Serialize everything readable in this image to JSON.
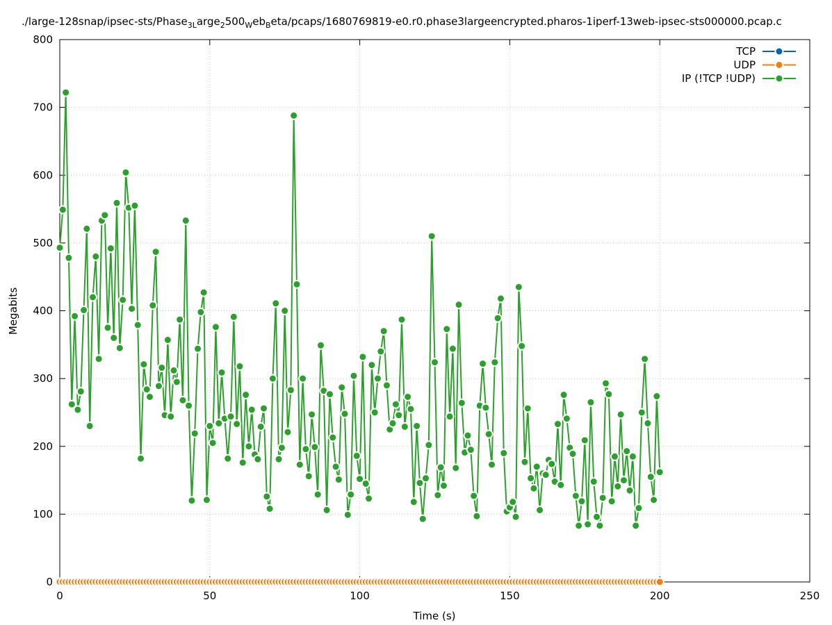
{
  "chart_data": {
    "type": "line",
    "title_parts": [
      "./large-128snap/ipsec-sts/Phase",
      "3L",
      "arge",
      "2",
      "500",
      "W",
      "eb",
      "B",
      "eta/pcaps/1680769819-e0.r0.phase3largeencrypted.pharos-1iperf-13web-ipsec-sts000000.pcap.c"
    ],
    "xlabel": "Time (s)",
    "ylabel": "Megabits",
    "xlim": [
      0,
      250
    ],
    "xticks": [
      0,
      50,
      100,
      150,
      200,
      250
    ],
    "ylim": [
      0,
      800
    ],
    "yticks": [
      0,
      100,
      200,
      300,
      400,
      500,
      600,
      700,
      800
    ],
    "grid": true,
    "legend": "top-right",
    "x": [
      0,
      1,
      2,
      3,
      4,
      5,
      6,
      7,
      8,
      9,
      10,
      11,
      12,
      13,
      14,
      15,
      16,
      17,
      18,
      19,
      20,
      21,
      22,
      23,
      24,
      25,
      26,
      27,
      28,
      29,
      30,
      31,
      32,
      33,
      34,
      35,
      36,
      37,
      38,
      39,
      40,
      41,
      42,
      43,
      44,
      45,
      46,
      47,
      48,
      49,
      50,
      51,
      52,
      53,
      54,
      55,
      56,
      57,
      58,
      59,
      60,
      61,
      62,
      63,
      64,
      65,
      66,
      67,
      68,
      69,
      70,
      71,
      72,
      73,
      74,
      75,
      76,
      77,
      78,
      79,
      80,
      81,
      82,
      83,
      84,
      85,
      86,
      87,
      88,
      89,
      90,
      91,
      92,
      93,
      94,
      95,
      96,
      97,
      98,
      99,
      100,
      101,
      102,
      103,
      104,
      105,
      106,
      107,
      108,
      109,
      110,
      111,
      112,
      113,
      114,
      115,
      116,
      117,
      118,
      119,
      120,
      121,
      122,
      123,
      124,
      125,
      126,
      127,
      128,
      129,
      130,
      131,
      132,
      133,
      134,
      135,
      136,
      137,
      138,
      139,
      140,
      141,
      142,
      143,
      144,
      145,
      146,
      147,
      148,
      149,
      150,
      151,
      152,
      153,
      154,
      155,
      156,
      157,
      158,
      159,
      160,
      161,
      162,
      163,
      164,
      165,
      166,
      167,
      168,
      169,
      170,
      171,
      172,
      173,
      174,
      175,
      176,
      177,
      178,
      179,
      180,
      181,
      182,
      183,
      184,
      185,
      186,
      187,
      188,
      189,
      190,
      191,
      192,
      193,
      194,
      195,
      196,
      197,
      198,
      199,
      200
    ],
    "series": [
      {
        "name": "TCP",
        "color": "#0a63b0",
        "values": [
          0,
          0,
          0,
          0,
          0,
          0,
          0,
          0,
          0,
          0,
          0,
          0,
          0,
          0,
          0,
          0,
          0,
          0,
          0,
          0,
          0,
          0,
          0,
          0,
          0,
          0,
          0,
          0,
          0,
          0,
          0,
          0,
          0,
          0,
          0,
          0,
          0,
          0,
          0,
          0,
          0,
          0,
          0,
          0,
          0,
          0,
          0,
          0,
          0,
          0,
          0,
          0,
          0,
          0,
          0,
          0,
          0,
          0,
          0,
          0,
          0,
          0,
          0,
          0,
          0,
          0,
          0,
          0,
          0,
          0,
          0,
          0,
          0,
          0,
          0,
          0,
          0,
          0,
          0,
          0,
          0,
          0,
          0,
          0,
          0,
          0,
          0,
          0,
          0,
          0,
          0,
          0,
          0,
          0,
          0,
          0,
          0,
          0,
          0,
          0,
          0,
          0,
          0,
          0,
          0,
          0,
          0,
          0,
          0,
          0,
          0,
          0,
          0,
          0,
          0,
          0,
          0,
          0,
          0,
          0,
          0,
          0,
          0,
          0,
          0,
          0,
          0,
          0,
          0,
          0,
          0,
          0,
          0,
          0,
          0,
          0,
          0,
          0,
          0,
          0,
          0,
          0,
          0,
          0,
          0,
          0,
          0,
          0,
          0,
          0,
          0,
          0,
          0,
          0,
          0,
          0,
          0,
          0,
          0,
          0,
          0,
          0,
          0,
          0,
          0,
          0,
          0,
          0,
          0,
          0,
          0,
          0,
          0,
          0,
          0,
          0,
          0,
          0,
          0,
          0,
          0,
          0,
          0,
          0,
          0,
          0,
          0,
          0,
          0,
          0,
          0,
          0,
          0,
          0,
          0,
          0,
          0,
          0,
          0,
          0,
          0
        ]
      },
      {
        "name": "UDP",
        "color": "#f07f0f",
        "values": [
          0,
          0,
          0,
          0,
          0,
          0,
          0,
          0,
          0,
          0,
          0,
          0,
          0,
          0,
          0,
          0,
          0,
          0,
          0,
          0,
          0,
          0,
          0,
          0,
          0,
          0,
          0,
          0,
          0,
          0,
          0,
          0,
          0,
          0,
          0,
          0,
          0,
          0,
          0,
          0,
          0,
          0,
          0,
          0,
          0,
          0,
          0,
          0,
          0,
          0,
          0,
          0,
          0,
          0,
          0,
          0,
          0,
          0,
          0,
          0,
          0,
          0,
          0,
          0,
          0,
          0,
          0,
          0,
          0,
          0,
          0,
          0,
          0,
          0,
          0,
          0,
          0,
          0,
          0,
          0,
          0,
          0,
          0,
          0,
          0,
          0,
          0,
          0,
          0,
          0,
          0,
          0,
          0,
          0,
          0,
          0,
          0,
          0,
          0,
          0,
          0,
          0,
          0,
          0,
          0,
          0,
          0,
          0,
          0,
          0,
          0,
          0,
          0,
          0,
          0,
          0,
          0,
          0,
          0,
          0,
          0,
          0,
          0,
          0,
          0,
          0,
          0,
          0,
          0,
          0,
          0,
          0,
          0,
          0,
          0,
          0,
          0,
          0,
          0,
          0,
          0,
          0,
          0,
          0,
          0,
          0,
          0,
          0,
          0,
          0,
          0,
          0,
          0,
          0,
          0,
          0,
          0,
          0,
          0,
          0,
          0,
          0,
          0,
          0,
          0,
          0,
          0,
          0,
          0,
          0,
          0,
          0,
          0,
          0,
          0,
          0,
          0,
          0,
          0,
          0,
          0,
          0,
          0,
          0,
          0,
          0,
          0,
          0,
          0,
          0,
          0,
          0,
          0,
          0,
          0,
          0,
          0,
          0,
          0,
          0,
          0
        ]
      },
      {
        "name": "IP (!TCP  !UDP)",
        "color": "#2ca02c",
        "values": [
          493,
          549,
          722,
          478,
          262,
          392,
          254,
          281,
          401,
          521,
          230,
          420,
          480,
          329,
          533,
          541,
          375,
          492,
          360,
          559,
          345,
          416,
          604,
          552,
          403,
          555,
          379,
          182,
          321,
          284,
          273,
          408,
          487,
          289,
          316,
          246,
          357,
          244,
          312,
          295,
          387,
          268,
          533,
          260,
          120,
          219,
          344,
          398,
          427,
          121,
          230,
          205,
          376,
          234,
          309,
          241,
          182,
          244,
          391,
          233,
          318,
          176,
          276,
          200,
          254,
          188,
          181,
          229,
          256,
          126,
          108,
          300,
          411,
          181,
          198,
          400,
          221,
          283,
          688,
          439,
          173,
          300,
          196,
          156,
          247,
          199,
          129,
          349,
          282,
          106,
          277,
          213,
          170,
          151,
          287,
          248,
          99,
          129,
          304,
          186,
          152,
          332,
          145,
          123,
          320,
          250,
          300,
          340,
          370,
          290,
          225,
          234,
          262,
          246,
          387,
          229,
          273,
          255,
          118,
          230,
          146,
          93,
          153,
          202,
          510,
          324,
          128,
          169,
          142,
          373,
          244,
          344,
          168,
          409,
          264,
          191,
          216,
          195,
          127,
          97,
          260,
          322,
          257,
          218,
          173,
          324,
          389,
          418,
          190,
          104,
          110,
          118,
          96,
          435,
          348,
          177,
          256,
          153,
          138,
          170,
          106,
          160,
          158,
          180,
          174,
          148,
          233,
          143,
          276,
          241,
          198,
          189,
          127,
          83,
          119,
          209,
          85,
          265,
          148,
          96,
          83,
          124,
          293,
          277,
          119,
          185,
          141,
          247,
          150,
          193,
          135,
          185,
          83,
          109,
          250,
          329,
          234,
          155,
          121,
          274,
          162
        ]
      }
    ]
  }
}
